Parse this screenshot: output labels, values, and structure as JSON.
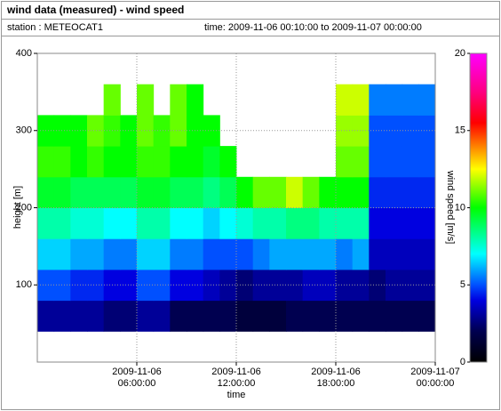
{
  "header": {
    "title": "wind data (measured) - wind speed",
    "station": "station : METEOCAT1",
    "time": "time: 2009-11-06 00:10:00 to 2009-11-07 00:00:00"
  },
  "chart_data": {
    "type": "heatmap",
    "xlabel": "time",
    "ylabel": "height [m]",
    "colorbar_label": "wind speed [m/s]",
    "xlim": [
      0,
      24
    ],
    "ylim": [
      0,
      400
    ],
    "xticks": [
      {
        "value": 6,
        "label": "2009-11-06\n06:00:00"
      },
      {
        "value": 12,
        "label": "2009-11-06\n12:00:00"
      },
      {
        "value": 18,
        "label": "2009-11-06\n18:00:00"
      },
      {
        "value": 24,
        "label": "2009-11-07\n00:00:00"
      }
    ],
    "yticks": [
      100,
      200,
      300,
      400
    ],
    "clim": [
      0,
      20
    ],
    "cticks": [
      0,
      5,
      10,
      15,
      20
    ],
    "colormap": [
      [
        0,
        "#000000"
      ],
      [
        2,
        "#000050"
      ],
      [
        4,
        "#0000e0"
      ],
      [
        5,
        "#0050ff"
      ],
      [
        7,
        "#00ffff"
      ],
      [
        8.5,
        "#00ff80"
      ],
      [
        10,
        "#00ff00"
      ],
      [
        12.5,
        "#ffff00"
      ],
      [
        14,
        "#ff8000"
      ],
      [
        15.5,
        "#ff0000"
      ],
      [
        17.5,
        "#ff0080"
      ],
      [
        20,
        "#ff00ff"
      ]
    ],
    "grid": true,
    "xbins": [
      0,
      1,
      2,
      3,
      4,
      5,
      6,
      7,
      8,
      9,
      10,
      11,
      12,
      13,
      14,
      15,
      16,
      17,
      18,
      19,
      20,
      21,
      22,
      23,
      24
    ],
    "ybins": [
      40,
      80,
      120,
      160,
      200,
      240,
      280,
      320,
      360,
      400
    ],
    "values": [
      [
        3,
        3,
        3,
        3,
        2.5,
        2.5,
        3,
        3,
        2,
        2,
        2,
        2,
        1.5,
        1.5,
        1.5,
        2,
        2,
        2,
        2,
        2,
        2,
        2,
        2,
        2
      ],
      [
        5,
        5,
        4.5,
        4.5,
        4,
        4,
        5,
        5,
        4,
        4,
        3.5,
        3,
        2.5,
        3,
        3,
        3,
        3.5,
        3.5,
        3,
        3,
        2.5,
        3,
        3,
        3
      ],
      [
        6.5,
        6.5,
        6,
        6,
        5.5,
        5.5,
        6.5,
        6.5,
        5.5,
        5.5,
        5,
        5,
        5,
        5.5,
        6,
        6,
        6,
        6,
        5.5,
        6,
        3.5,
        3.5,
        3.5,
        3.5
      ],
      [
        8,
        8,
        7.5,
        7.5,
        7,
        7,
        8,
        8,
        7,
        7,
        6.5,
        7,
        7.5,
        8,
        8,
        8.5,
        8.5,
        8,
        8,
        8,
        4,
        4,
        4,
        4
      ],
      [
        9.5,
        9.5,
        9,
        9,
        9,
        9,
        9.5,
        9.5,
        9,
        9,
        8.5,
        9,
        10,
        11,
        11,
        12,
        11,
        10,
        10,
        10,
        4.5,
        4.5,
        4.5,
        4.5
      ],
      [
        10.5,
        10.5,
        10,
        10.5,
        10,
        10,
        10.5,
        10.5,
        10,
        10,
        9.5,
        10,
        null,
        null,
        null,
        null,
        null,
        null,
        11,
        11,
        5,
        5,
        5,
        5
      ],
      [
        10,
        10,
        10,
        11,
        10.5,
        10,
        11,
        10.5,
        11,
        10,
        10,
        null,
        null,
        null,
        null,
        null,
        null,
        null,
        11.5,
        11.5,
        5,
        5,
        5,
        5
      ],
      [
        null,
        null,
        null,
        null,
        11,
        null,
        11,
        null,
        11,
        10,
        null,
        null,
        null,
        null,
        null,
        null,
        null,
        null,
        12,
        12,
        5.5,
        5.5,
        5.5,
        5.5
      ],
      [
        null,
        null,
        null,
        null,
        null,
        null,
        null,
        null,
        null,
        null,
        null,
        null,
        null,
        null,
        null,
        null,
        null,
        null,
        null,
        null,
        null,
        null,
        null,
        null
      ]
    ]
  }
}
